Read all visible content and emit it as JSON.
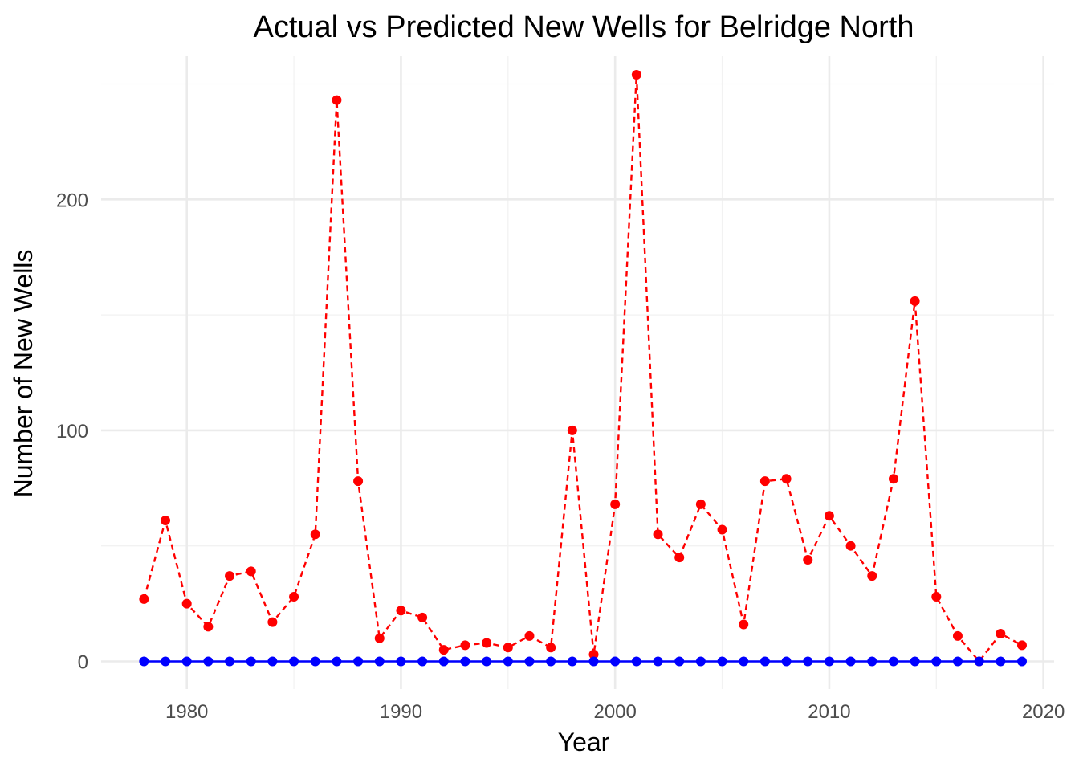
{
  "chart_data": {
    "type": "line",
    "title": "Actual vs Predicted New Wells for Belridge  North",
    "xlabel": "Year",
    "ylabel": "Number of New Wells",
    "xlim": [
      1976,
      2020.5
    ],
    "ylim": [
      -12,
      262
    ],
    "x_ticks": [
      1980,
      1990,
      2000,
      2010,
      2020
    ],
    "x_tick_labels": [
      "1980",
      "1990",
      "2000",
      "2010",
      "2020"
    ],
    "y_ticks": [
      0,
      100,
      200
    ],
    "y_tick_labels": [
      "0",
      "100",
      "200"
    ],
    "grid": true,
    "legend": "none",
    "x": [
      1978,
      1979,
      1980,
      1981,
      1982,
      1983,
      1984,
      1985,
      1986,
      1987,
      1988,
      1989,
      1990,
      1991,
      1992,
      1993,
      1994,
      1995,
      1996,
      1997,
      1998,
      1999,
      2000,
      2001,
      2002,
      2003,
      2004,
      2005,
      2006,
      2007,
      2008,
      2009,
      2010,
      2011,
      2012,
      2013,
      2014,
      2015,
      2016,
      2017,
      2018,
      2019
    ],
    "series": [
      {
        "color": "#ff0000",
        "line_style": "dashed",
        "values": [
          27,
          61,
          25,
          15,
          37,
          39,
          17,
          28,
          55,
          243,
          78,
          10,
          22,
          19,
          5,
          7,
          8,
          6,
          11,
          6,
          100,
          3,
          68,
          254,
          55,
          45,
          68,
          57,
          16,
          78,
          79,
          44,
          63,
          50,
          37,
          79,
          156,
          28,
          11,
          0,
          12,
          7
        ]
      },
      {
        "color": "#0000ff",
        "line_style": "solid",
        "values": [
          0,
          0,
          0,
          0,
          0,
          0,
          0,
          0,
          0,
          0,
          0,
          0,
          0,
          0,
          0,
          0,
          0,
          0,
          0,
          0,
          0,
          0,
          0,
          0,
          0,
          0,
          0,
          0,
          0,
          0,
          0,
          0,
          0,
          0,
          0,
          0,
          0,
          0,
          0,
          0,
          0,
          0
        ]
      }
    ]
  }
}
